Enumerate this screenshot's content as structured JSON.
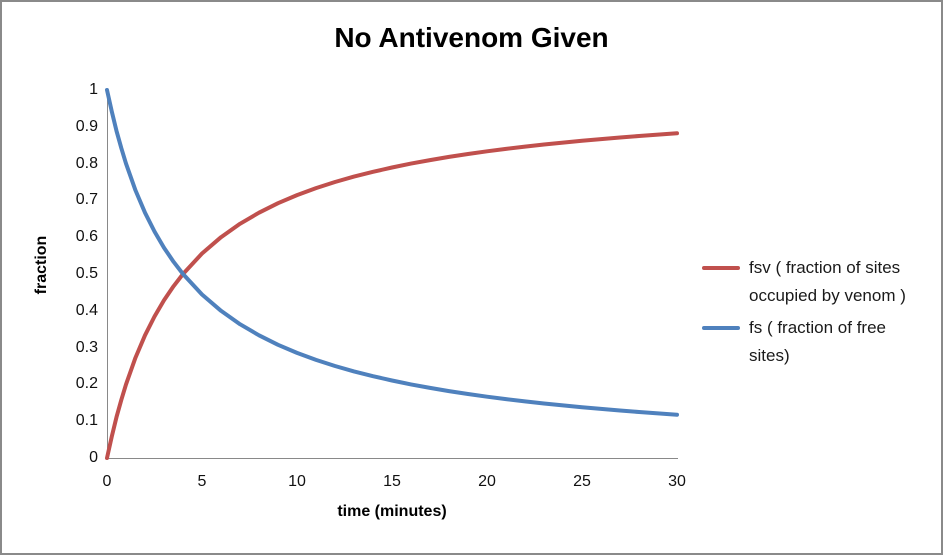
{
  "chart_data": {
    "type": "line",
    "title": "No Antivenom Given",
    "xlabel": "time (minutes)",
    "ylabel": "fraction",
    "xlim": [
      0,
      30
    ],
    "ylim": [
      0,
      1
    ],
    "grid": false,
    "legend_position": "right",
    "axis_color": "#898989",
    "x_ticks": [
      "0",
      "5",
      "10",
      "15",
      "20",
      "25",
      "30"
    ],
    "y_ticks": [
      "0",
      "0.1",
      "0.2",
      "0.3",
      "0.4",
      "0.5",
      "0.6",
      "0.7",
      "0.8",
      "0.9",
      "1"
    ],
    "x": [
      0,
      0.25,
      0.5,
      0.75,
      1,
      1.5,
      2,
      2.5,
      3,
      3.5,
      4,
      5,
      6,
      7,
      8,
      9,
      10,
      11,
      12,
      13,
      14,
      15,
      16,
      17,
      18,
      19,
      20,
      21,
      22,
      23,
      24,
      25,
      26,
      27,
      28,
      29,
      30
    ],
    "series": [
      {
        "name": "fsv",
        "color": "#C0504D",
        "label": "fsv ( fraction of sites occupied by venom )",
        "label_lines": [
          "fsv ( fraction of sites",
          "occupied by venom )"
        ],
        "values": [
          0,
          0.0588,
          0.1111,
          0.1579,
          0.2,
          0.2727,
          0.3333,
          0.3846,
          0.4286,
          0.4667,
          0.5,
          0.5556,
          0.6,
          0.6364,
          0.6667,
          0.6923,
          0.7143,
          0.7333,
          0.75,
          0.7647,
          0.7778,
          0.7895,
          0.8,
          0.8095,
          0.8182,
          0.8261,
          0.8333,
          0.84,
          0.8462,
          0.8519,
          0.8571,
          0.8621,
          0.8667,
          0.871,
          0.875,
          0.8788,
          0.8824
        ]
      },
      {
        "name": "fs",
        "color": "#4F81BD",
        "label": "fs ( fraction of free sites)",
        "label_lines": [
          "fs ( fraction of free",
          "sites)"
        ],
        "values": [
          1,
          0.9412,
          0.8889,
          0.8421,
          0.8,
          0.7273,
          0.6667,
          0.6154,
          0.5714,
          0.5333,
          0.5,
          0.4444,
          0.4,
          0.3636,
          0.3333,
          0.3077,
          0.2857,
          0.2667,
          0.25,
          0.2353,
          0.2222,
          0.2105,
          0.2,
          0.1905,
          0.1818,
          0.1739,
          0.1667,
          0.16,
          0.1538,
          0.1481,
          0.1429,
          0.1379,
          0.1333,
          0.129,
          0.125,
          0.1212,
          0.1176
        ]
      }
    ]
  }
}
